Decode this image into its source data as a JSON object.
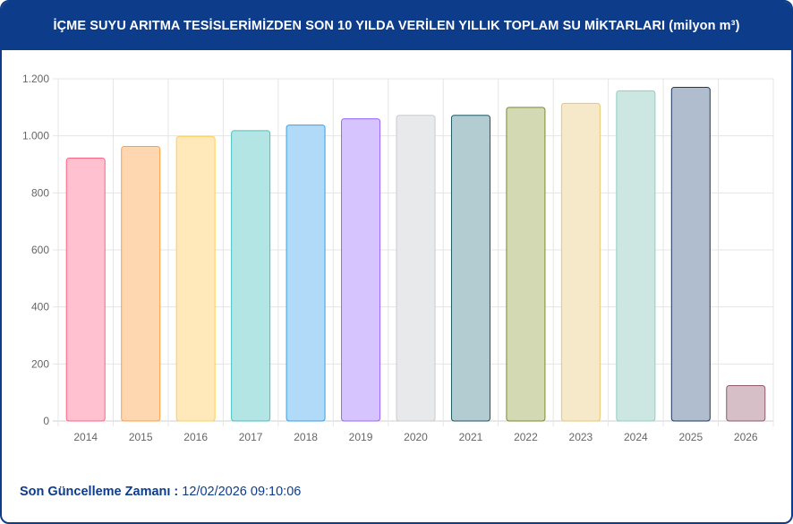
{
  "header": {
    "title": "İÇME SUYU ARITMA TESİSLERİMİZDEN SON 10 YILDA VERİLEN YILLIK TOPLAM SU MİKTARLARI (milyon m³)"
  },
  "footer": {
    "label": "Son Güncelleme Zamanı :",
    "value": "12/02/2026 09:10:06"
  },
  "colors": {
    "header_bg": "#0d3c8a",
    "grid": "#e5e5e5",
    "tick_text": "#666666"
  },
  "chart_data": {
    "type": "bar",
    "categories": [
      "2014",
      "2015",
      "2016",
      "2017",
      "2018",
      "2019",
      "2020",
      "2021",
      "2022",
      "2023",
      "2024",
      "2025",
      "2026"
    ],
    "values": [
      922,
      963,
      998,
      1018,
      1038,
      1060,
      1072,
      1072,
      1100,
      1114,
      1158,
      1170,
      124
    ],
    "ylim": [
      0,
      1200
    ],
    "yticks": [
      0,
      200,
      400,
      600,
      800,
      1000,
      1200
    ],
    "ytick_labels": [
      "0",
      "200",
      "400",
      "600",
      "800",
      "1.000",
      "1.200"
    ],
    "grid": true,
    "legend": "none",
    "bar_fill_colors": [
      "#ffc0cf",
      "#fed7b0",
      "#ffe9bb",
      "#b4e5e5",
      "#b1d9f8",
      "#d6c4ff",
      "#e8e9eb",
      "#b3ccd1",
      "#d3d9b2",
      "#f5e9c9",
      "#cce6e1",
      "#b0bdcf",
      "#d6bfc6"
    ],
    "bar_border_colors": [
      "#ff6384",
      "#ff9f40",
      "#ffcd56",
      "#4bc0c0",
      "#36a2eb",
      "#9966ff",
      "#c9cbcf",
      "#1e5962",
      "#7d8a2e",
      "#e6c96e",
      "#8fcfc0",
      "#1e3a5f",
      "#8c5a6a"
    ]
  }
}
